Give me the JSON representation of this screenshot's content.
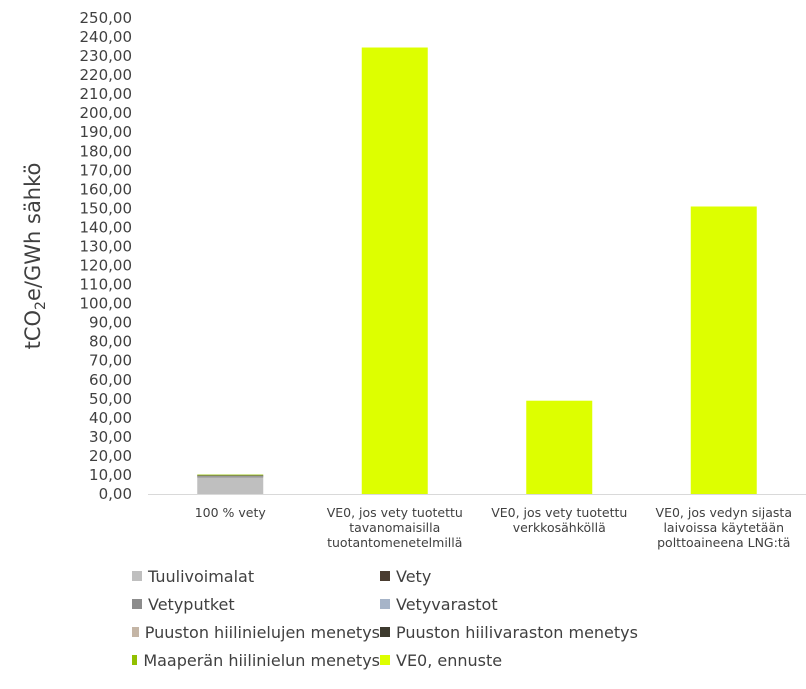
{
  "chart_data": {
    "type": "bar",
    "stacked": true,
    "ylabel": "tCO2e/GWh sähkö",
    "ylabel_main": "tCO",
    "ylabel_sub": "2",
    "ylabel_rest": "e/GWh sähkö",
    "ylim": [
      0,
      250
    ],
    "ytick_step": 10,
    "ytick_labels": [
      "0,00",
      "10,00",
      "20,00",
      "30,00",
      "40,00",
      "50,00",
      "60,00",
      "70,00",
      "80,00",
      "90,00",
      "100,00",
      "110,00",
      "120,00",
      "130,00",
      "140,00",
      "150,00",
      "160,00",
      "170,00",
      "180,00",
      "190,00",
      "200,00",
      "210,00",
      "220,00",
      "230,00",
      "240,00",
      "250,00"
    ],
    "grid": false,
    "legend_position": "bottom",
    "categories": [
      "100 % vety",
      "VE0, jos vety tuotettu tavanomaisilla tuotantomenetelmillä",
      "VE0, jos vety tuotettu verkkosähköllä",
      "VE0, jos vedyn sijasta laivoissa käytetään polttoaineena LNG:tä"
    ],
    "category_lines": [
      [
        "100 % vety"
      ],
      [
        "VE0, jos vety tuotettu",
        "tavanomaisilla",
        "tuotantomenetelmillä"
      ],
      [
        "VE0, jos vety tuotettu",
        "verkkosähköllä"
      ],
      [
        "VE0, jos vedyn sijasta",
        "laivoissa käytetään",
        "polttoaineena LNG:tä"
      ]
    ],
    "series": [
      {
        "name": "Tuulivoimalat",
        "color": "#bfbfbf",
        "values": [
          9.0,
          0,
          0,
          0
        ]
      },
      {
        "name": "Vety",
        "color": "#4a3c30",
        "values": [
          0.1,
          0,
          0,
          0
        ]
      },
      {
        "name": "Vetyputket",
        "color": "#8c8c8c",
        "values": [
          0.3,
          0,
          0,
          0
        ]
      },
      {
        "name": "Vetyvarastot",
        "color": "#a6b4c8",
        "values": [
          0.1,
          0,
          0,
          0
        ]
      },
      {
        "name": "Puuston hiilinielujen menetys",
        "color": "#c4b5a5",
        "values": [
          0.2,
          0,
          0,
          0
        ]
      },
      {
        "name": "Puuston hiilivaraston menetys",
        "color": "#3d3a2e",
        "values": [
          0.1,
          0,
          0,
          0
        ]
      },
      {
        "name": "Maaperän hiilinielun menetys",
        "color": "#92c000",
        "values": [
          0.4,
          0,
          0,
          0
        ]
      },
      {
        "name": "VE0, ennuste",
        "color": "#ddff00",
        "values": [
          0,
          234.5,
          49.0,
          151.0
        ]
      }
    ]
  }
}
